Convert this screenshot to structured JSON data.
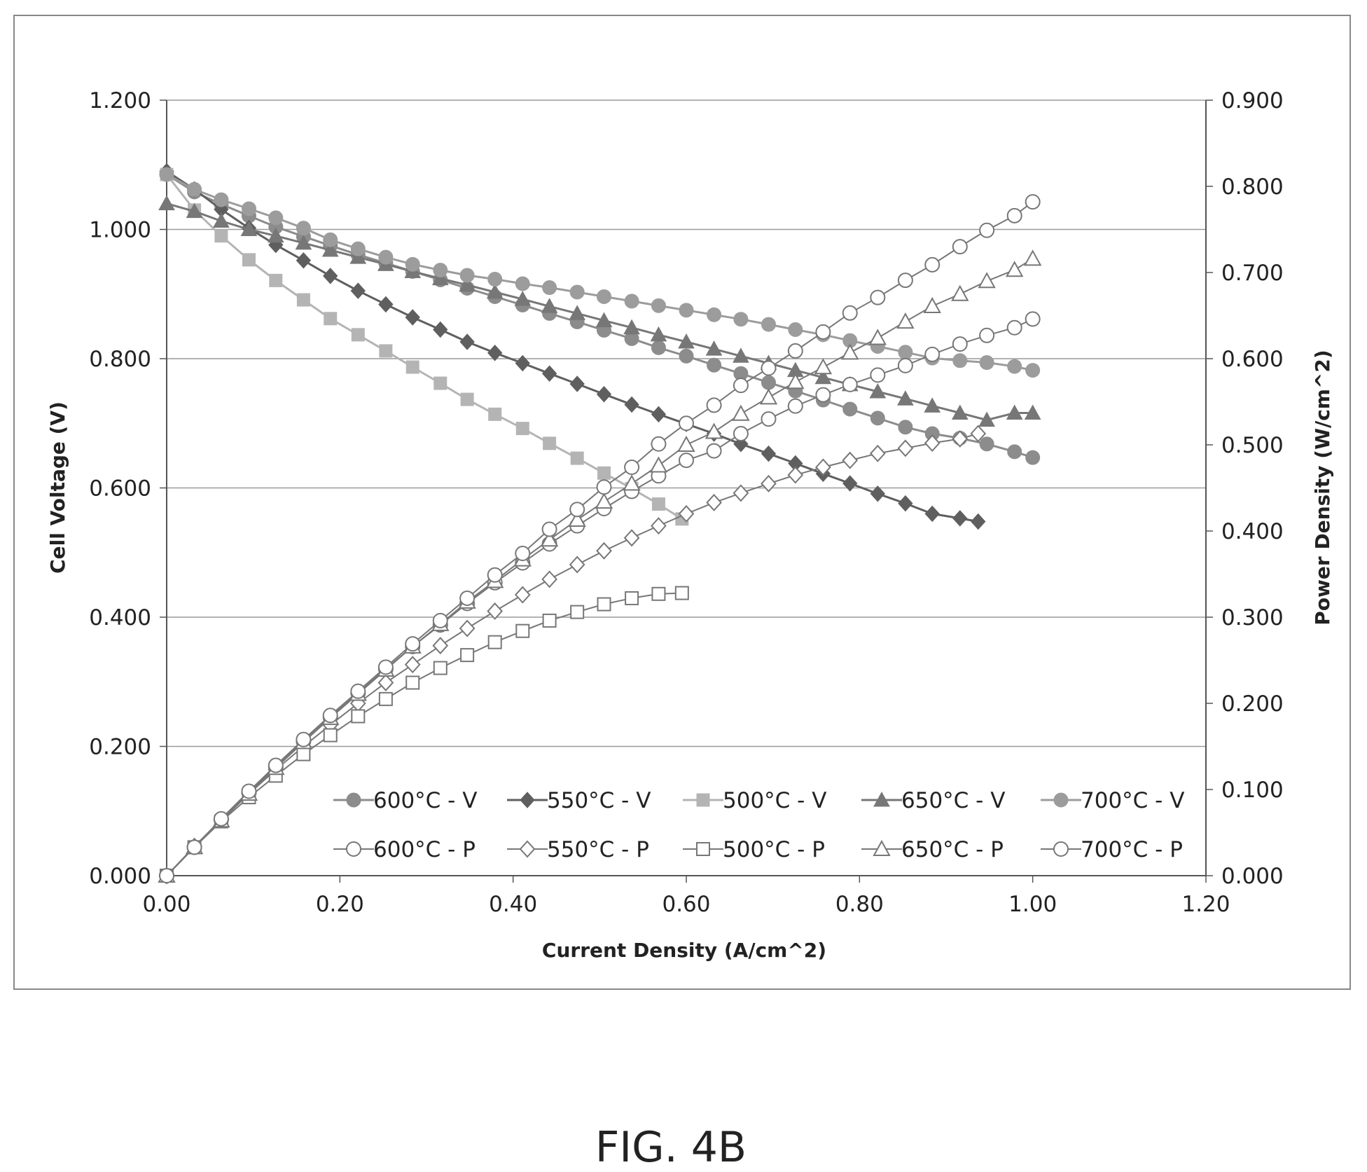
{
  "caption": "FIG. 4B",
  "chart_data": {
    "type": "line",
    "title": "",
    "xlabel": "Current Density (A/cm^2)",
    "ylabel": "Cell Voltage (V)",
    "y2label": "Power Density (W/cm^2)",
    "xlim": [
      0,
      1.2
    ],
    "ylim": [
      0,
      1.2
    ],
    "y2lim": [
      0,
      0.9
    ],
    "x_ticks": [
      "0.00",
      "0.20",
      "0.40",
      "0.60",
      "0.80",
      "1.00",
      "1.20"
    ],
    "y_ticks": [
      "0.000",
      "0.200",
      "0.400",
      "0.600",
      "0.800",
      "1.000",
      "1.200"
    ],
    "y2_ticks": [
      "0.000",
      "0.100",
      "0.200",
      "0.300",
      "0.400",
      "0.500",
      "0.600",
      "0.700",
      "0.800",
      "0.900"
    ],
    "grid": "horizontal",
    "legend_position": "bottom-right",
    "colors": {
      "v600": "#8c8c8c",
      "v550": "#5f5f5f",
      "v500": "#b4b4b4",
      "v650": "#777777",
      "v700": "#9c9c9c",
      "power": "#777777",
      "grid": "#9a9a9a",
      "frame": "#555555"
    },
    "series": [
      {
        "name": "600°C - V",
        "axis": "left",
        "marker": "circle",
        "fill": true,
        "color": "v600",
        "x": [
          0,
          0.032,
          0.063,
          0.095,
          0.126,
          0.158,
          0.189,
          0.221,
          0.253,
          0.284,
          0.316,
          0.347,
          0.379,
          0.411,
          0.442,
          0.474,
          0.505,
          0.537,
          0.568,
          0.6,
          0.632,
          0.663,
          0.695,
          0.726,
          0.758,
          0.789,
          0.821,
          0.853,
          0.884,
          0.916,
          0.947,
          0.979,
          1.0
        ],
        "y": [
          1.085,
          1.058,
          1.039,
          1.021,
          1.004,
          0.989,
          0.975,
          0.961,
          0.948,
          0.935,
          0.922,
          0.909,
          0.896,
          0.883,
          0.87,
          0.857,
          0.844,
          0.831,
          0.817,
          0.804,
          0.79,
          0.777,
          0.763,
          0.75,
          0.736,
          0.722,
          0.708,
          0.694,
          0.684,
          0.677,
          0.668,
          0.656,
          0.647
        ]
      },
      {
        "name": "550°C - V",
        "axis": "left",
        "marker": "diamond",
        "fill": true,
        "color": "v550",
        "x": [
          0,
          0.032,
          0.063,
          0.095,
          0.126,
          0.158,
          0.189,
          0.221,
          0.253,
          0.284,
          0.316,
          0.347,
          0.379,
          0.411,
          0.442,
          0.474,
          0.505,
          0.537,
          0.568,
          0.6,
          0.632,
          0.663,
          0.695,
          0.726,
          0.758,
          0.789,
          0.821,
          0.853,
          0.884,
          0.916,
          0.937
        ],
        "y": [
          1.09,
          1.062,
          1.031,
          1.002,
          0.976,
          0.952,
          0.928,
          0.905,
          0.884,
          0.864,
          0.845,
          0.826,
          0.809,
          0.793,
          0.777,
          0.761,
          0.745,
          0.729,
          0.714,
          0.699,
          0.684,
          0.668,
          0.653,
          0.638,
          0.622,
          0.607,
          0.591,
          0.576,
          0.56,
          0.553,
          0.548
        ]
      },
      {
        "name": "500°C - V",
        "axis": "left",
        "marker": "square",
        "fill": true,
        "color": "v500",
        "x": [
          0,
          0.032,
          0.063,
          0.095,
          0.126,
          0.158,
          0.189,
          0.221,
          0.253,
          0.284,
          0.316,
          0.347,
          0.379,
          0.411,
          0.442,
          0.474,
          0.505,
          0.537,
          0.568,
          0.595
        ],
        "y": [
          1.085,
          1.03,
          0.99,
          0.953,
          0.921,
          0.891,
          0.862,
          0.837,
          0.812,
          0.787,
          0.762,
          0.737,
          0.714,
          0.692,
          0.669,
          0.646,
          0.623,
          0.599,
          0.575,
          0.552
        ]
      },
      {
        "name": "650°C - V",
        "axis": "left",
        "marker": "triangle",
        "fill": true,
        "color": "v650",
        "x": [
          0,
          0.032,
          0.063,
          0.095,
          0.126,
          0.158,
          0.189,
          0.221,
          0.253,
          0.284,
          0.316,
          0.347,
          0.379,
          0.411,
          0.442,
          0.474,
          0.505,
          0.537,
          0.568,
          0.6,
          0.632,
          0.663,
          0.695,
          0.726,
          0.758,
          0.789,
          0.821,
          0.853,
          0.884,
          0.916,
          0.947,
          0.979,
          1.0
        ],
        "y": [
          1.04,
          1.028,
          1.013,
          1.0,
          0.99,
          0.979,
          0.968,
          0.957,
          0.946,
          0.935,
          0.924,
          0.914,
          0.903,
          0.892,
          0.881,
          0.87,
          0.859,
          0.848,
          0.837,
          0.826,
          0.815,
          0.804,
          0.793,
          0.782,
          0.771,
          0.76,
          0.749,
          0.738,
          0.727,
          0.716,
          0.705,
          0.716,
          0.716
        ]
      },
      {
        "name": "700°C - V",
        "axis": "left",
        "marker": "circle",
        "fill": true,
        "color": "v700",
        "x": [
          0,
          0.032,
          0.063,
          0.095,
          0.126,
          0.158,
          0.189,
          0.221,
          0.253,
          0.284,
          0.316,
          0.347,
          0.379,
          0.411,
          0.442,
          0.474,
          0.505,
          0.537,
          0.568,
          0.6,
          0.632,
          0.663,
          0.695,
          0.726,
          0.758,
          0.789,
          0.821,
          0.853,
          0.884,
          0.916,
          0.947,
          0.979,
          1.0
        ],
        "y": [
          1.085,
          1.062,
          1.046,
          1.032,
          1.018,
          1.002,
          0.984,
          0.97,
          0.957,
          0.946,
          0.937,
          0.929,
          0.923,
          0.916,
          0.91,
          0.903,
          0.896,
          0.889,
          0.882,
          0.875,
          0.868,
          0.861,
          0.853,
          0.845,
          0.837,
          0.828,
          0.819,
          0.81,
          0.801,
          0.797,
          0.794,
          0.788,
          0.782
        ]
      },
      {
        "name": "600°C - P",
        "axis": "right",
        "marker": "circle",
        "fill": false,
        "color": "power",
        "x": [
          0,
          0.032,
          0.063,
          0.095,
          0.126,
          0.158,
          0.189,
          0.221,
          0.253,
          0.284,
          0.316,
          0.347,
          0.379,
          0.411,
          0.442,
          0.474,
          0.505,
          0.537,
          0.568,
          0.6,
          0.632,
          0.663,
          0.695,
          0.726,
          0.758,
          0.789,
          0.821,
          0.853,
          0.884,
          0.916,
          0.947,
          0.979,
          1.0
        ],
        "y": [
          0.0,
          0.033,
          0.065,
          0.097,
          0.126,
          0.156,
          0.184,
          0.212,
          0.24,
          0.266,
          0.291,
          0.316,
          0.34,
          0.363,
          0.385,
          0.406,
          0.426,
          0.446,
          0.464,
          0.482,
          0.493,
          0.513,
          0.53,
          0.545,
          0.558,
          0.57,
          0.581,
          0.592,
          0.605,
          0.617,
          0.627,
          0.636,
          0.646
        ]
      },
      {
        "name": "550°C - P",
        "axis": "right",
        "marker": "diamond",
        "fill": false,
        "color": "power",
        "x": [
          0,
          0.032,
          0.063,
          0.095,
          0.126,
          0.158,
          0.189,
          0.221,
          0.253,
          0.284,
          0.316,
          0.347,
          0.379,
          0.411,
          0.442,
          0.474,
          0.505,
          0.537,
          0.568,
          0.6,
          0.632,
          0.663,
          0.695,
          0.726,
          0.758,
          0.789,
          0.821,
          0.853,
          0.884,
          0.916,
          0.937
        ],
        "y": [
          0.0,
          0.034,
          0.065,
          0.095,
          0.123,
          0.15,
          0.175,
          0.2,
          0.224,
          0.245,
          0.267,
          0.287,
          0.307,
          0.326,
          0.344,
          0.361,
          0.377,
          0.392,
          0.406,
          0.42,
          0.433,
          0.444,
          0.455,
          0.465,
          0.474,
          0.482,
          0.49,
          0.496,
          0.502,
          0.507,
          0.513
        ]
      },
      {
        "name": "500°C - P",
        "axis": "right",
        "marker": "square",
        "fill": false,
        "color": "power",
        "x": [
          0,
          0.032,
          0.063,
          0.095,
          0.126,
          0.158,
          0.189,
          0.221,
          0.253,
          0.284,
          0.316,
          0.347,
          0.379,
          0.411,
          0.442,
          0.474,
          0.505,
          0.537,
          0.568,
          0.595
        ],
        "y": [
          0.0,
          0.033,
          0.063,
          0.091,
          0.116,
          0.141,
          0.163,
          0.185,
          0.205,
          0.224,
          0.241,
          0.256,
          0.271,
          0.284,
          0.296,
          0.306,
          0.315,
          0.322,
          0.327,
          0.328
        ]
      },
      {
        "name": "650°C - P",
        "axis": "right",
        "marker": "triangle",
        "fill": false,
        "color": "power",
        "x": [
          0,
          0.032,
          0.063,
          0.095,
          0.126,
          0.158,
          0.189,
          0.221,
          0.253,
          0.284,
          0.316,
          0.347,
          0.379,
          0.411,
          0.442,
          0.474,
          0.505,
          0.537,
          0.568,
          0.6,
          0.632,
          0.663,
          0.695,
          0.726,
          0.758,
          0.789,
          0.821,
          0.853,
          0.884,
          0.916,
          0.947,
          0.979,
          1.0
        ],
        "y": [
          0.0,
          0.033,
          0.064,
          0.095,
          0.125,
          0.155,
          0.183,
          0.211,
          0.239,
          0.266,
          0.292,
          0.318,
          0.342,
          0.367,
          0.39,
          0.413,
          0.434,
          0.455,
          0.476,
          0.5,
          0.515,
          0.536,
          0.555,
          0.573,
          0.59,
          0.607,
          0.624,
          0.643,
          0.661,
          0.675,
          0.69,
          0.703,
          0.716
        ]
      },
      {
        "name": "700°C - P",
        "axis": "right",
        "marker": "circle",
        "fill": false,
        "color": "power",
        "x": [
          0,
          0.032,
          0.063,
          0.095,
          0.126,
          0.158,
          0.189,
          0.221,
          0.253,
          0.284,
          0.316,
          0.347,
          0.379,
          0.411,
          0.442,
          0.474,
          0.505,
          0.537,
          0.568,
          0.6,
          0.632,
          0.663,
          0.695,
          0.726,
          0.758,
          0.789,
          0.821,
          0.853,
          0.884,
          0.916,
          0.947,
          0.979,
          1.0
        ],
        "y": [
          0.0,
          0.033,
          0.066,
          0.098,
          0.128,
          0.158,
          0.186,
          0.214,
          0.242,
          0.269,
          0.296,
          0.322,
          0.349,
          0.374,
          0.402,
          0.425,
          0.451,
          0.474,
          0.501,
          0.525,
          0.546,
          0.569,
          0.589,
          0.609,
          0.631,
          0.653,
          0.671,
          0.691,
          0.709,
          0.73,
          0.749,
          0.766,
          0.782
        ]
      }
    ]
  }
}
